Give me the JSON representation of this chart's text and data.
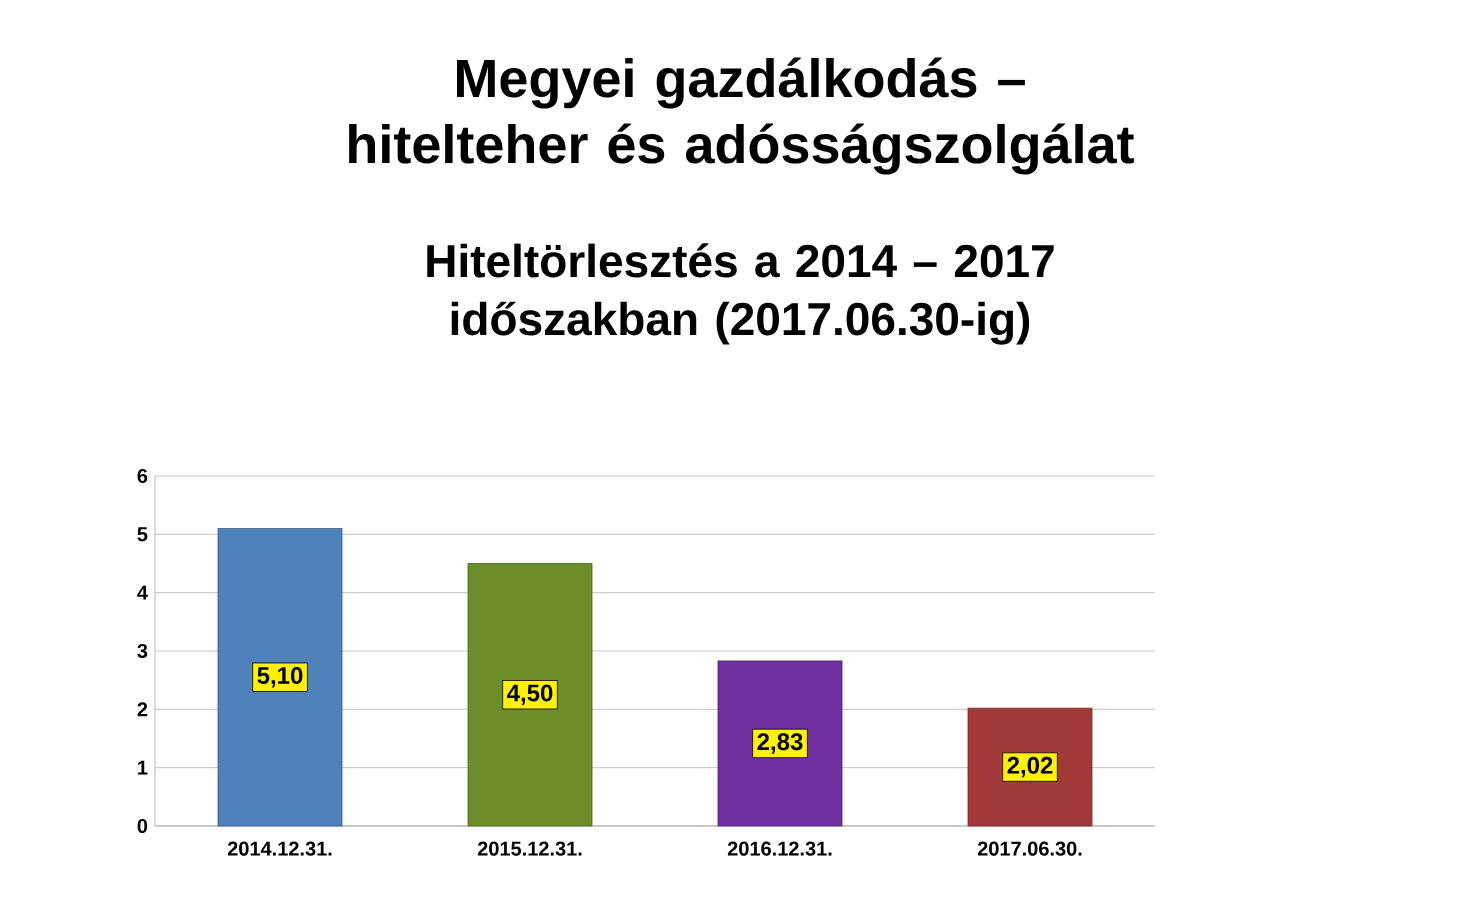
{
  "chart_data": {
    "type": "bar",
    "title": "Megyei gazdálkodás – hitelteher és adósságszolgálat",
    "subtitle": "Hiteltörlesztés a 2014 – 2017 időszakban (2017.06.30-ig)",
    "categories": [
      "2014.12.31.",
      "2015.12.31.",
      "2016.12.31.",
      "2017.06.30."
    ],
    "values": [
      5.1,
      4.5,
      2.83,
      2.02
    ],
    "value_labels": [
      "5,10",
      "4,50",
      "2,83",
      "2,02"
    ],
    "colors": [
      "#4f81bd",
      "#6b8e2a",
      "#7030a0",
      "#a33a3a"
    ],
    "ylim": [
      0,
      6
    ],
    "yticks": [
      0,
      1,
      2,
      3,
      4,
      5,
      6
    ],
    "grid": "y"
  }
}
